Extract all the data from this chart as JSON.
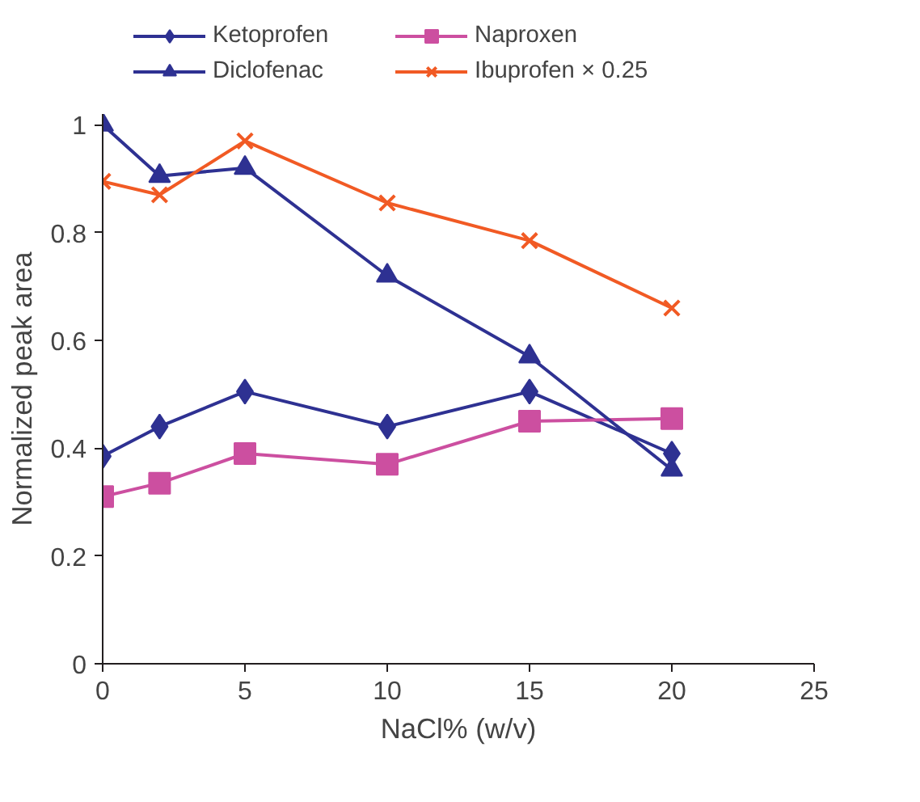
{
  "chart_data": {
    "type": "line",
    "xlabel": "NaCl% (w/v)",
    "ylabel": "Normalized peak area",
    "x": [
      0,
      2,
      5,
      10,
      15,
      20
    ],
    "series": [
      {
        "name": "Ketoprofen",
        "color": "#2e3192",
        "marker": "diamond",
        "values": [
          0.385,
          0.44,
          0.505,
          0.44,
          0.505,
          0.39
        ]
      },
      {
        "name": "Naproxen",
        "color": "#cc4fa0",
        "marker": "square",
        "values": [
          0.31,
          0.335,
          0.39,
          0.37,
          0.45,
          0.455
        ]
      },
      {
        "name": "Diclofenac",
        "color": "#2e3192",
        "marker": "triangle",
        "values": [
          1.0,
          0.905,
          0.92,
          0.72,
          0.57,
          0.36
        ]
      },
      {
        "name": "Ibuprofen × 0.25",
        "color": "#f15a24",
        "marker": "cross",
        "values": [
          0.895,
          0.87,
          0.97,
          0.855,
          0.785,
          0.66
        ]
      }
    ],
    "xlim": [
      0,
      25
    ],
    "xticks": [
      0,
      5,
      10,
      15,
      20,
      25
    ],
    "ylim": [
      0,
      1.02
    ],
    "yticks": [
      0,
      0.2,
      0.4,
      0.6,
      0.8,
      1
    ],
    "grid": false,
    "legend": "top",
    "line_style": "solid"
  }
}
